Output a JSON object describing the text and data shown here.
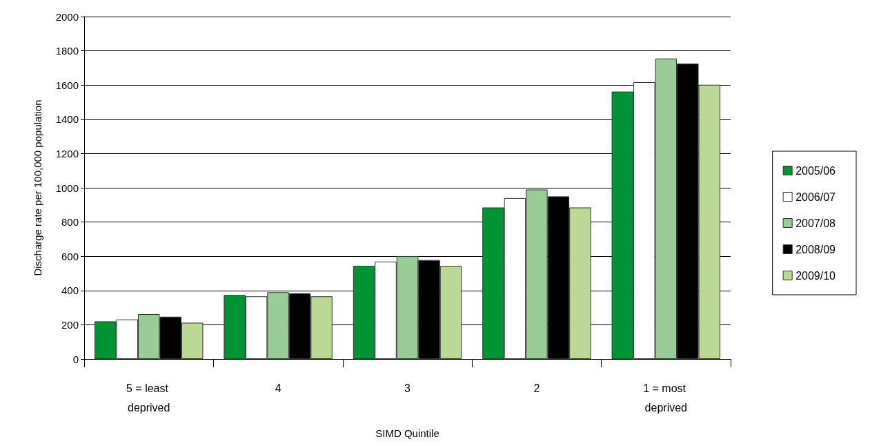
{
  "chart_data": {
    "type": "bar",
    "xlabel": "SIMD Quintile",
    "ylabel": "Discharge rate per 100,000 population",
    "categories": [
      "5 = least deprived",
      "4",
      "3",
      "2",
      "1 = most deprived"
    ],
    "series": [
      {
        "name": "2005/06",
        "color": "#009435",
        "values": [
          220,
          374,
          544,
          885,
          1562
        ]
      },
      {
        "name": "2006/07",
        "color": "#ffffff",
        "values": [
          231,
          366,
          569,
          940,
          1617
        ]
      },
      {
        "name": "2007/08",
        "color": "#99cc96",
        "values": [
          262,
          390,
          601,
          990,
          1755
        ]
      },
      {
        "name": "2008/09",
        "color": "#000000",
        "values": [
          247,
          384,
          578,
          950,
          1725
        ]
      },
      {
        "name": "2009/10",
        "color": "#bcd896",
        "values": [
          212,
          366,
          544,
          885,
          1602
        ]
      }
    ],
    "ylim": [
      0,
      2000
    ],
    "yticks": [
      0,
      200,
      400,
      600,
      800,
      1000,
      1200,
      1400,
      1600,
      1800,
      2000
    ],
    "grid": "y",
    "legend": "right"
  }
}
